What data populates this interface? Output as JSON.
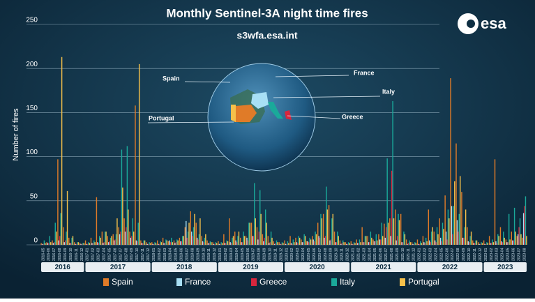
{
  "chart_data": {
    "type": "bar",
    "title": "Monthly Sentinel-3A night time fires",
    "subtitle": "s3wfa.esa.int",
    "logo": "esa",
    "y_label": "Number of fires",
    "annotations": [
      "Spain",
      "France",
      "Italy",
      "Greece",
      "Portugal"
    ],
    "year_labels": [
      "2016",
      "2017",
      "2018",
      "2019",
      "2020",
      "2021",
      "2022",
      "2023"
    ],
    "categories": [
      "2016-05",
      "2016-06",
      "2016-07",
      "2016-08",
      "2016-09",
      "2016-10",
      "2016-11",
      "2016-12",
      "2017-01",
      "2017-02",
      "2017-03",
      "2017-04",
      "2017-05",
      "2017-06",
      "2017-07",
      "2017-08",
      "2017-09",
      "2017-10",
      "2017-11",
      "2017-12",
      "2018-01",
      "2018-02",
      "2018-03",
      "2018-04",
      "2018-05",
      "2018-06",
      "2018-07",
      "2018-08",
      "2018-09",
      "2018-10",
      "2018-11",
      "2018-12",
      "2019-01",
      "2019-02",
      "2019-03",
      "2019-04",
      "2019-05",
      "2019-06",
      "2019-07",
      "2019-08",
      "2019-09",
      "2019-10",
      "2019-11",
      "2019-12",
      "2020-01",
      "2020-02",
      "2020-03",
      "2020-04",
      "2020-05",
      "2020-06",
      "2020-07",
      "2020-08",
      "2020-09",
      "2020-10",
      "2020-11",
      "2020-12",
      "2021-01",
      "2021-02",
      "2021-03",
      "2021-04",
      "2021-05",
      "2021-06",
      "2021-07",
      "2021-08",
      "2021-09",
      "2021-10",
      "2021-11",
      "2021-12",
      "2022-01",
      "2022-02",
      "2022-03",
      "2022-04",
      "2022-05",
      "2022-06",
      "2022-07",
      "2022-08",
      "2022-09",
      "2022-10",
      "2022-11",
      "2022-12",
      "2023-01",
      "2023-02",
      "2023-03",
      "2023-04",
      "2023-05",
      "2023-06",
      "2023-07",
      "2023-08"
    ],
    "series": [
      {
        "name": "Spain",
        "color": "#e07b28",
        "values": [
          2,
          3,
          5,
          97,
          20,
          8,
          3,
          2,
          5,
          8,
          54,
          15,
          10,
          12,
          20,
          30,
          15,
          158,
          5,
          3,
          3,
          5,
          8,
          4,
          5,
          8,
          20,
          38,
          25,
          10,
          5,
          3,
          4,
          12,
          30,
          15,
          8,
          10,
          25,
          20,
          12,
          10,
          4,
          3,
          5,
          10,
          8,
          6,
          4,
          10,
          25,
          35,
          45,
          15,
          5,
          3,
          4,
          6,
          20,
          10,
          6,
          12,
          24,
          30,
          40,
          35,
          6,
          3,
          6,
          10,
          40,
          15,
          30,
          56,
          189,
          115,
          60,
          20,
          5,
          3,
          5,
          10,
          97,
          20,
          6,
          15,
          10,
          8
        ]
      },
      {
        "name": "France",
        "color": "#a8dff5",
        "values": [
          1,
          2,
          2,
          5,
          3,
          2,
          1,
          1,
          1,
          2,
          3,
          2,
          3,
          5,
          12,
          15,
          8,
          5,
          2,
          1,
          1,
          1,
          2,
          5,
          2,
          4,
          27,
          15,
          8,
          4,
          2,
          1,
          1,
          2,
          3,
          5,
          3,
          8,
          10,
          6,
          4,
          2,
          1,
          1,
          1,
          2,
          3,
          3,
          4,
          6,
          10,
          8,
          5,
          3,
          1,
          1,
          1,
          2,
          3,
          3,
          4,
          6,
          8,
          10,
          5,
          3,
          1,
          1,
          1,
          3,
          5,
          5,
          8,
          15,
          44,
          28,
          8,
          4,
          2,
          1,
          1,
          2,
          4,
          4,
          3,
          5,
          12,
          36
        ]
      },
      {
        "name": "Greece",
        "color": "#d7263d",
        "values": [
          1,
          2,
          3,
          10,
          5,
          2,
          1,
          1,
          1,
          2,
          2,
          3,
          4,
          6,
          15,
          20,
          10,
          4,
          2,
          1,
          1,
          1,
          2,
          3,
          3,
          4,
          8,
          10,
          6,
          3,
          2,
          1,
          1,
          2,
          2,
          3,
          3,
          5,
          10,
          15,
          8,
          3,
          2,
          1,
          1,
          1,
          2,
          3,
          3,
          4,
          8,
          10,
          6,
          3,
          2,
          1,
          1,
          2,
          3,
          3,
          4,
          6,
          20,
          84,
          10,
          3,
          2,
          1,
          1,
          2,
          3,
          3,
          4,
          6,
          12,
          15,
          8,
          3,
          2,
          1,
          1,
          2,
          2,
          3,
          3,
          5,
          20,
          44
        ]
      },
      {
        "name": "Italy",
        "color": "#1aa99a",
        "values": [
          5,
          10,
          25,
          36,
          15,
          8,
          3,
          2,
          3,
          5,
          10,
          15,
          8,
          12,
          108,
          112,
          30,
          25,
          5,
          3,
          3,
          4,
          6,
          8,
          6,
          10,
          15,
          20,
          12,
          8,
          4,
          3,
          3,
          5,
          8,
          10,
          15,
          25,
          70,
          62,
          40,
          15,
          5,
          3,
          4,
          6,
          10,
          12,
          8,
          15,
          35,
          66,
          30,
          15,
          5,
          3,
          3,
          6,
          10,
          15,
          12,
          25,
          98,
          163,
          35,
          15,
          5,
          3,
          4,
          8,
          15,
          20,
          25,
          40,
          44,
          35,
          20,
          10,
          5,
          3,
          3,
          6,
          12,
          15,
          35,
          42,
          30,
          55
        ]
      },
      {
        "name": "Portugal",
        "color": "#f5c04a",
        "values": [
          2,
          3,
          15,
          213,
          61,
          10,
          3,
          2,
          2,
          3,
          8,
          15,
          10,
          30,
          65,
          40,
          15,
          205,
          5,
          2,
          2,
          3,
          5,
          3,
          5,
          10,
          25,
          35,
          30,
          12,
          3,
          2,
          2,
          4,
          10,
          15,
          10,
          25,
          30,
          35,
          25,
          8,
          3,
          2,
          2,
          3,
          8,
          10,
          6,
          12,
          30,
          40,
          35,
          10,
          3,
          2,
          2,
          3,
          10,
          8,
          5,
          10,
          25,
          30,
          28,
          12,
          3,
          2,
          2,
          4,
          20,
          12,
          18,
          30,
          72,
          78,
          40,
          15,
          5,
          2,
          2,
          3,
          10,
          8,
          6,
          15,
          12,
          10
        ]
      }
    ],
    "ylim": [
      0,
      250
    ],
    "yticks": [
      0,
      50,
      100,
      150,
      200,
      250
    ],
    "grid": true
  }
}
